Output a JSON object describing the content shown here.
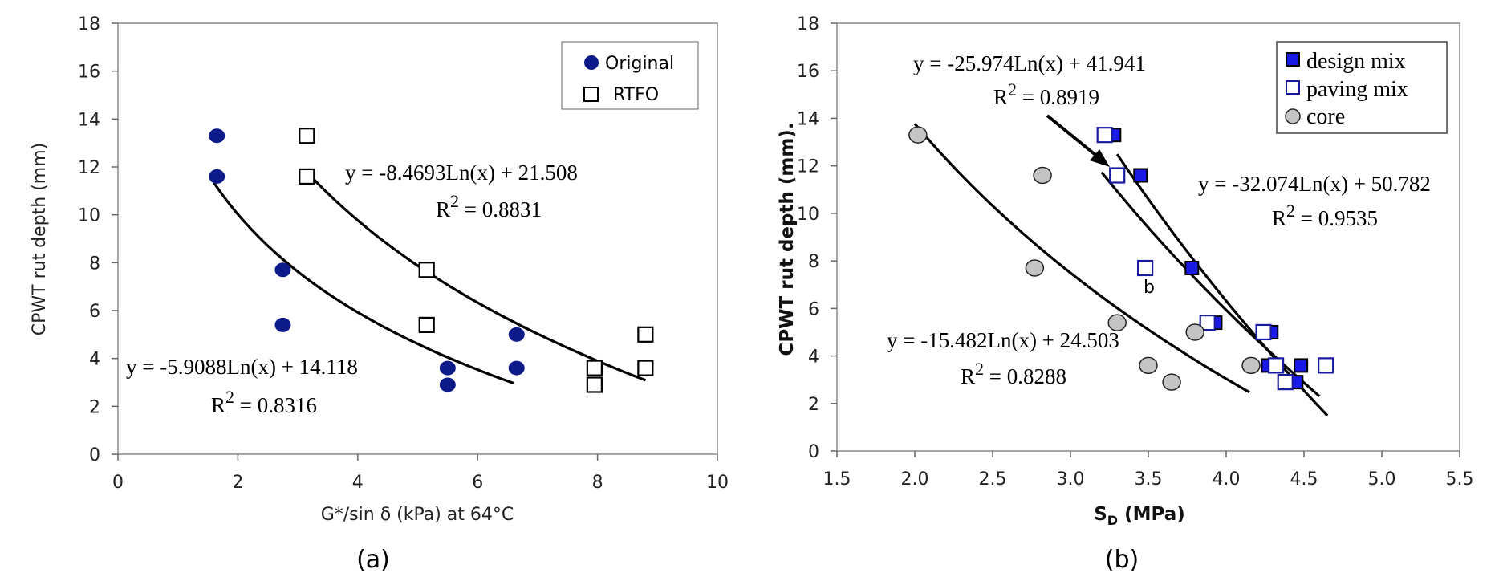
{
  "chart_data": [
    {
      "type": "scatter",
      "caption": "(a)",
      "xlabel": "G*/sin δ (kPa) at 64°C",
      "ylabel": "CPWT rut depth (mm)",
      "xlim": [
        0,
        10
      ],
      "ylim": [
        0,
        18
      ],
      "xticks": [
        "0",
        "2",
        "4",
        "6",
        "8",
        "10"
      ],
      "yticks": [
        "0",
        "2",
        "4",
        "6",
        "8",
        "10",
        "12",
        "14",
        "16",
        "18"
      ],
      "legend_position": "top-right",
      "series": [
        {
          "name": "Original",
          "marker": "filled-circle",
          "color": "#0d1a8a",
          "points": [
            [
              1.65,
              13.3
            ],
            [
              1.65,
              11.6
            ],
            [
              2.75,
              7.7
            ],
            [
              2.75,
              5.4
            ],
            [
              5.5,
              3.6
            ],
            [
              5.5,
              2.9
            ],
            [
              6.65,
              5.0
            ],
            [
              6.65,
              3.6
            ]
          ]
        },
        {
          "name": "RTFO",
          "marker": "open-square",
          "color": "#000000",
          "points": [
            [
              3.15,
              13.3
            ],
            [
              3.15,
              11.6
            ],
            [
              5.15,
              7.7
            ],
            [
              5.15,
              5.4
            ],
            [
              7.95,
              3.6
            ],
            [
              7.95,
              2.9
            ],
            [
              8.8,
              5.0
            ],
            [
              8.8,
              3.6
            ]
          ]
        }
      ],
      "trendlines": [
        {
          "a": -5.9088,
          "b": 14.118,
          "x_range": [
            1.6,
            6.6
          ],
          "equation": "y = -5.9088Ln(x) + 14.118",
          "r2_label": "R",
          "r2_value": "= 0.8316"
        },
        {
          "a": -8.4693,
          "b": 21.508,
          "x_range": [
            3.2,
            8.8
          ],
          "equation": "y = -8.4693Ln(x) + 21.508",
          "r2_label": "R",
          "r2_value": "= 0.8831"
        }
      ]
    },
    {
      "type": "scatter",
      "caption": "(b)",
      "xlabel": "S",
      "xlabel_sub": "D",
      "xlabel_unit": " (MPa)",
      "ylabel": "CPWT rut depth (mm).",
      "xlim": [
        1.5,
        5.5
      ],
      "ylim": [
        0,
        18
      ],
      "xticks": [
        "1.5",
        "2.0",
        "2.5",
        "3.0",
        "3.5",
        "4.0",
        "4.5",
        "5.0",
        "5.5"
      ],
      "yticks": [
        "0",
        "2",
        "4",
        "6",
        "8",
        "10",
        "12",
        "14",
        "16",
        "18"
      ],
      "legend_position": "top-right",
      "annotation": "b",
      "series": [
        {
          "name": "design mix",
          "marker": "filled-square",
          "color": "#1a1ae6",
          "points": [
            [
              3.28,
              13.3
            ],
            [
              3.45,
              11.6
            ],
            [
              3.78,
              7.7
            ],
            [
              3.93,
              5.4
            ],
            [
              4.29,
              5.0
            ],
            [
              4.27,
              3.6
            ],
            [
              4.48,
              3.6
            ],
            [
              4.45,
              2.9
            ]
          ]
        },
        {
          "name": "paving mix",
          "marker": "open-square",
          "color": "#1a1aa0",
          "points": [
            [
              3.22,
              13.3
            ],
            [
              3.3,
              11.6
            ],
            [
              3.48,
              7.7
            ],
            [
              3.88,
              5.4
            ],
            [
              4.24,
              5.0
            ],
            [
              4.32,
              3.6
            ],
            [
              4.64,
              3.6
            ],
            [
              4.38,
              2.9
            ]
          ]
        },
        {
          "name": "core",
          "marker": "gray-circle",
          "color": "#c4c4c4",
          "points": [
            [
              2.02,
              13.3
            ],
            [
              2.82,
              11.6
            ],
            [
              2.77,
              7.7
            ],
            [
              3.3,
              5.4
            ],
            [
              3.8,
              5.0
            ],
            [
              3.5,
              3.6
            ],
            [
              3.65,
              2.9
            ],
            [
              4.16,
              3.6
            ]
          ]
        }
      ],
      "trendlines": [
        {
          "a": -25.974,
          "b": 41.941,
          "x_range": [
            3.2,
            4.6
          ],
          "equation": "y = -25.974Ln(x) + 41.941",
          "r2_label": "R",
          "r2_value": "= 0.8919"
        },
        {
          "a": -32.074,
          "b": 50.782,
          "x_range": [
            3.3,
            4.65
          ],
          "equation": "y = -32.074Ln(x) + 50.782",
          "r2_label": "R",
          "r2_value": "= 0.9535"
        },
        {
          "a": -15.482,
          "b": 24.503,
          "x_range": [
            2.0,
            4.15
          ],
          "equation": "y = -15.482Ln(x) + 24.503",
          "r2_label": "R",
          "r2_value": "= 0.8288"
        }
      ]
    }
  ]
}
